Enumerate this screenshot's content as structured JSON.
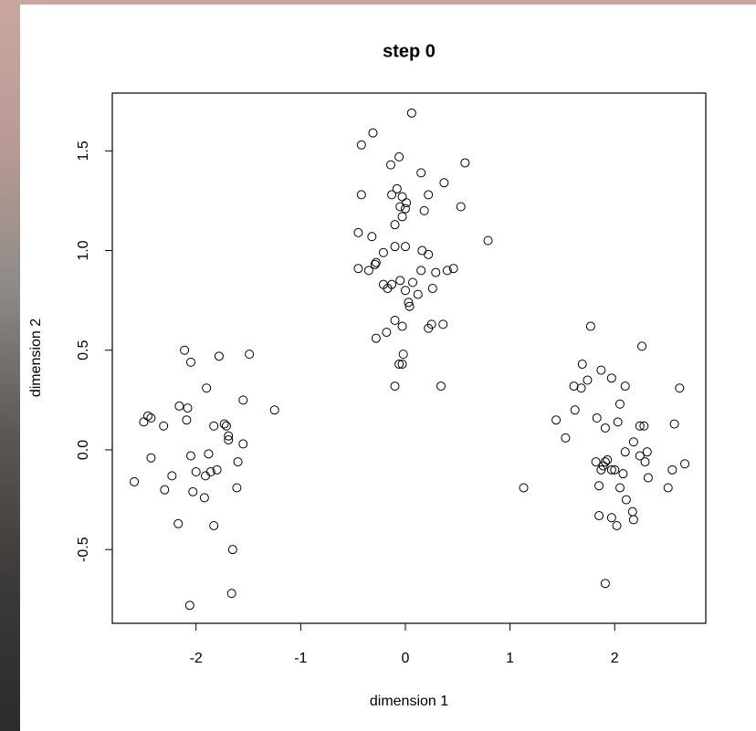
{
  "chart_data": {
    "type": "scatter",
    "title": "step 0",
    "x_label": "dimension 1",
    "y_label": "dimension 2",
    "color": "#000000",
    "xlim": [
      -2.8,
      2.87
    ],
    "ylim": [
      -0.87,
      1.79
    ],
    "xticks": [
      -2,
      -1,
      0,
      1,
      2
    ],
    "yticks": [
      -0.5,
      {
        "value": 0,
        "label": "0.0"
      },
      0.5,
      {
        "value": 1,
        "label": "1.0"
      },
      1.5
    ],
    "x": [
      -2.11,
      -1.78,
      -1.49,
      -2.05,
      -1.9,
      -1.55,
      -2.16,
      -2.08,
      -2.46,
      -1.25,
      -2.43,
      -2.5,
      -2.31,
      -2.09,
      -1.73,
      -1.83,
      -1.71,
      -1.69,
      -1.69,
      -1.55,
      -2.43,
      -2.05,
      -1.88,
      -1.6,
      -1.8,
      -2.0,
      -1.86,
      -1.91,
      -2.59,
      -2.23,
      -2.3,
      -2.03,
      -1.61,
      -1.92,
      -2.17,
      -1.83,
      -1.65,
      -1.66,
      -2.06,
      0.06,
      -0.31,
      -0.42,
      -0.14,
      -0.06,
      0.15,
      0.57,
      0.37,
      -0.42,
      0.22,
      -0.13,
      -0.08,
      -0.03,
      0.01,
      -0.05,
      0.0,
      -0.03,
      0.53,
      0.18,
      -0.1,
      -0.32,
      -0.45,
      0.79,
      -0.1,
      0.0,
      0.16,
      0.22,
      -0.28,
      -0.29,
      -0.21,
      -0.45,
      -0.35,
      0.15,
      0.29,
      0.4,
      0.46,
      -0.05,
      -0.21,
      -0.17,
      0.07,
      -0.13,
      0.26,
      0.0,
      0.12,
      0.03,
      0.04,
      -0.1,
      -0.03,
      0.25,
      0.36,
      0.22,
      -0.18,
      -0.28,
      -0.02,
      -0.03,
      -0.06,
      -0.1,
      0.34,
      1.77,
      2.26,
      1.69,
      1.87,
      1.61,
      1.74,
      1.97,
      1.68,
      2.62,
      2.1,
      2.05,
      1.62,
      1.44,
      1.83,
      2.03,
      1.91,
      2.24,
      2.28,
      2.57,
      1.53,
      2.18,
      2.1,
      2.31,
      2.29,
      2.24,
      1.82,
      1.91,
      1.87,
      1.89,
      1.97,
      2.0,
      1.93,
      2.55,
      2.67,
      2.08,
      2.32,
      2.51,
      1.13,
      1.85,
      2.05,
      2.11,
      2.17,
      2.18,
      1.85,
      1.97,
      2.02,
      1.91
    ],
    "values": [
      0.5,
      0.47,
      0.48,
      0.44,
      0.31,
      0.25,
      0.22,
      0.21,
      0.17,
      0.2,
      0.16,
      0.14,
      0.12,
      0.15,
      0.13,
      0.12,
      0.12,
      0.07,
      0.05,
      0.03,
      -0.04,
      -0.03,
      -0.02,
      -0.06,
      -0.1,
      -0.11,
      -0.11,
      -0.13,
      -0.16,
      -0.13,
      -0.2,
      -0.21,
      -0.19,
      -0.24,
      -0.37,
      -0.38,
      -0.5,
      -0.72,
      -0.78,
      1.69,
      1.59,
      1.53,
      1.43,
      1.47,
      1.39,
      1.44,
      1.34,
      1.28,
      1.28,
      1.28,
      1.31,
      1.27,
      1.24,
      1.22,
      1.21,
      1.17,
      1.22,
      1.2,
      1.13,
      1.07,
      1.09,
      1.05,
      1.02,
      1.02,
      1.0,
      0.98,
      0.94,
      0.93,
      0.99,
      0.91,
      0.9,
      0.9,
      0.89,
      0.9,
      0.91,
      0.85,
      0.83,
      0.81,
      0.84,
      0.83,
      0.81,
      0.8,
      0.78,
      0.74,
      0.72,
      0.65,
      0.62,
      0.63,
      0.63,
      0.61,
      0.59,
      0.56,
      0.48,
      0.43,
      0.43,
      0.32,
      0.32,
      0.62,
      0.52,
      0.43,
      0.4,
      0.32,
      0.35,
      0.36,
      0.31,
      0.31,
      0.32,
      0.23,
      0.2,
      0.15,
      0.16,
      0.14,
      0.11,
      0.12,
      0.12,
      0.13,
      0.06,
      0.04,
      -0.01,
      -0.01,
      -0.06,
      -0.03,
      -0.06,
      -0.06,
      -0.1,
      -0.08,
      -0.1,
      -0.1,
      -0.05,
      -0.1,
      -0.07,
      -0.12,
      -0.14,
      -0.19,
      -0.19,
      -0.18,
      -0.19,
      -0.25,
      -0.31,
      -0.35,
      -0.33,
      -0.34,
      -0.38,
      -0.67
    ]
  }
}
